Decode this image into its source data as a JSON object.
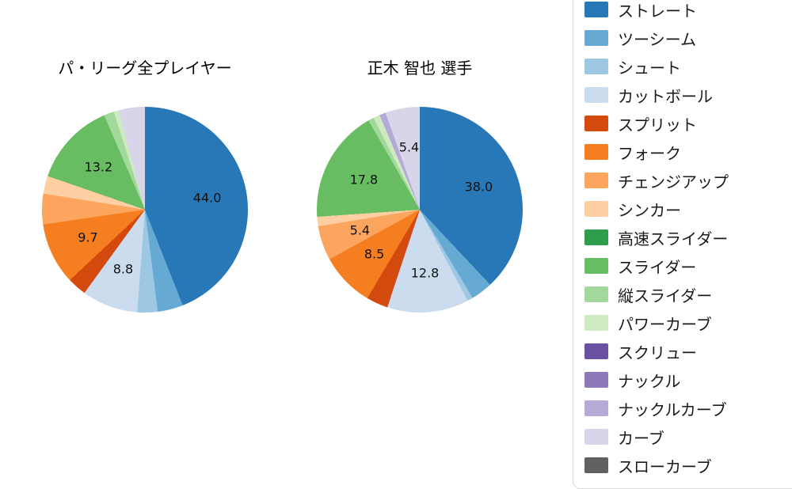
{
  "chart_data": {
    "type": "pie",
    "legend_position": "right",
    "start_angle": "top",
    "direction": "clockwise",
    "label_threshold": 5.0,
    "label_format": "one_decimal_percent_value",
    "categories": [
      "ストレート",
      "ツーシーム",
      "シュート",
      "カットボール",
      "スプリット",
      "フォーク",
      "チェンジアップ",
      "シンカー",
      "高速スライダー",
      "スライダー",
      "縦スライダー",
      "パワーカーブ",
      "スクリュー",
      "ナックル",
      "ナックルカーブ",
      "カーブ",
      "スローカーブ"
    ],
    "colors": [
      "#2878b8",
      "#66aad4",
      "#9dc7e2",
      "#cadcee",
      "#d3490e",
      "#f57e20",
      "#fba55e",
      "#fdcfa2",
      "#2f9e4c",
      "#68bd63",
      "#a3d89c",
      "#cdeac0",
      "#6a51a3",
      "#8d79ba",
      "#b4aad5",
      "#d8d5ea",
      "#606060"
    ],
    "charts": [
      {
        "title": "パ・リーグ全プレイヤー",
        "values": [
          44.0,
          4.0,
          3.2,
          8.8,
          3.0,
          9.7,
          4.8,
          2.8,
          0,
          13.2,
          1.6,
          0.8,
          0,
          0,
          0,
          4.1,
          0
        ],
        "visible_labels": [
          "44.0",
          "8.8",
          "9.7",
          "13.2"
        ]
      },
      {
        "title": "正木 智也 選手",
        "values": [
          38.0,
          3.4,
          0.9,
          12.8,
          3.4,
          8.5,
          5.4,
          1.5,
          0,
          17.8,
          0.9,
          1.0,
          0,
          0,
          1.0,
          5.4,
          0
        ],
        "visible_labels": [
          "38.0",
          "12.8",
          "8.5",
          "5.4",
          "17.8",
          "5.4"
        ]
      }
    ]
  }
}
